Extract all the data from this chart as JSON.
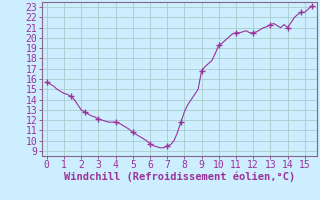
{
  "title": "",
  "xlabel": "Windchill (Refroidissement éolien,°C)",
  "ylabel": "",
  "xlim": [
    -0.3,
    15.7
  ],
  "ylim": [
    8.5,
    23.5
  ],
  "xticks": [
    0,
    1,
    2,
    3,
    4,
    5,
    6,
    7,
    8,
    9,
    10,
    11,
    12,
    13,
    14,
    15
  ],
  "yticks": [
    9,
    10,
    11,
    12,
    13,
    14,
    15,
    16,
    17,
    18,
    19,
    20,
    21,
    22,
    23
  ],
  "line_color": "#993399",
  "marker_color": "#993399",
  "bg_color": "#cceeff",
  "grid_color": "#aacccc",
  "spine_color": "#886688",
  "data_x": [
    0.0,
    0.2,
    0.4,
    0.6,
    0.8,
    1.0,
    1.2,
    1.4,
    1.6,
    1.8,
    2.0,
    2.2,
    2.4,
    2.6,
    2.8,
    3.0,
    3.2,
    3.4,
    3.6,
    3.8,
    4.0,
    4.2,
    4.4,
    4.6,
    4.8,
    5.0,
    5.2,
    5.4,
    5.6,
    5.8,
    6.0,
    6.2,
    6.4,
    6.6,
    6.8,
    7.0,
    7.2,
    7.4,
    7.6,
    7.8,
    8.0,
    8.2,
    8.4,
    8.6,
    8.8,
    9.0,
    9.2,
    9.4,
    9.6,
    9.8,
    10.0,
    10.2,
    10.4,
    10.6,
    10.8,
    11.0,
    11.2,
    11.4,
    11.6,
    11.8,
    12.0,
    12.2,
    12.4,
    12.6,
    12.8,
    13.0,
    13.2,
    13.4,
    13.6,
    13.8,
    14.0,
    14.2,
    14.4,
    14.6,
    14.8,
    15.0,
    15.2,
    15.4
  ],
  "data_y": [
    15.7,
    15.5,
    15.3,
    15.0,
    14.8,
    14.6,
    14.5,
    14.3,
    14.0,
    13.5,
    13.0,
    12.8,
    12.6,
    12.4,
    12.3,
    12.1,
    12.0,
    11.9,
    11.8,
    11.8,
    11.8,
    11.7,
    11.5,
    11.3,
    11.1,
    10.8,
    10.6,
    10.4,
    10.2,
    10.0,
    9.7,
    9.5,
    9.4,
    9.3,
    9.3,
    9.5,
    9.6,
    10.0,
    10.8,
    11.8,
    12.8,
    13.5,
    14.0,
    14.5,
    15.0,
    16.8,
    17.2,
    17.5,
    17.8,
    18.5,
    19.3,
    19.5,
    19.8,
    20.1,
    20.4,
    20.5,
    20.5,
    20.6,
    20.7,
    20.5,
    20.5,
    20.6,
    20.8,
    21.0,
    21.1,
    21.3,
    21.4,
    21.2,
    21.0,
    21.3,
    21.0,
    21.5,
    22.0,
    22.3,
    22.5,
    22.5,
    22.8,
    23.1
  ],
  "marker_x": [
    0.0,
    1.4,
    2.2,
    3.0,
    4.0,
    5.0,
    6.0,
    7.0,
    7.8,
    9.0,
    10.0,
    11.0,
    12.0,
    13.0,
    14.0,
    14.8,
    15.4
  ],
  "marker_y": [
    15.7,
    14.3,
    12.8,
    12.1,
    11.8,
    10.8,
    9.7,
    9.5,
    11.8,
    16.8,
    19.3,
    20.5,
    20.5,
    21.3,
    21.0,
    22.5,
    23.1
  ],
  "xlabel_fontsize": 7.5,
  "tick_fontsize": 7,
  "figsize": [
    3.2,
    2.0
  ],
  "dpi": 100
}
